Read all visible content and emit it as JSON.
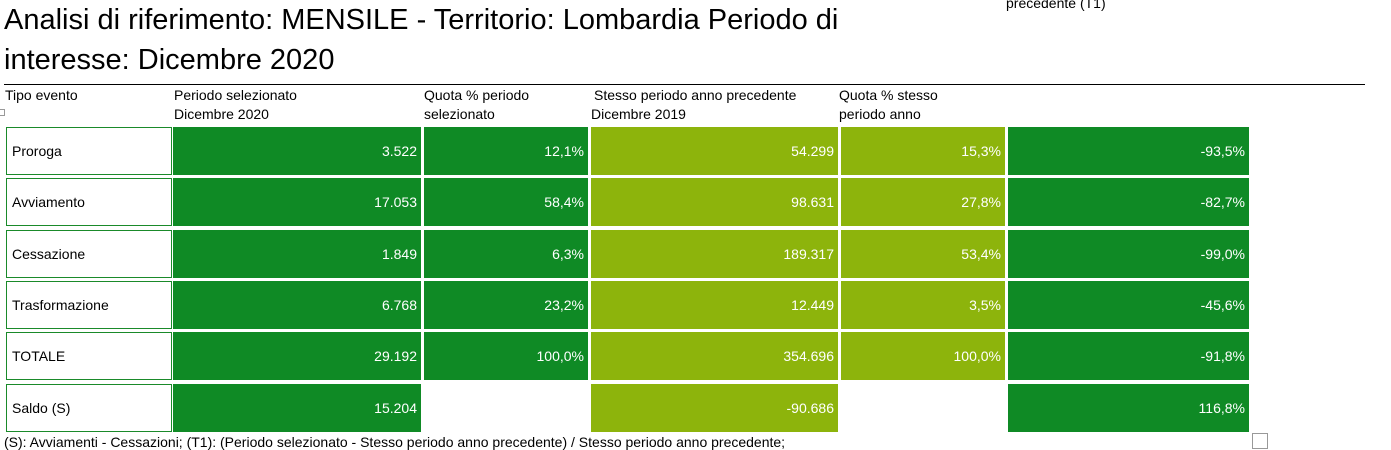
{
  "title": "Analisi di riferimento: MENSILE - Territorio: Lombardia Periodo di interesse: Dicembre 2020",
  "top_note": "precedente (T1)",
  "headers": {
    "col0": "Tipo evento",
    "col1_line1": "Periodo selezionato",
    "col1_line2": "Dicembre 2020",
    "col2_line1": "Quota % periodo",
    "col2_line2": "selezionato",
    "col3_line1": "Stesso periodo anno precedente",
    "col3_line2": "Dicembre 2019",
    "col4_line1": "Quota % stesso",
    "col4_line2": "periodo anno"
  },
  "rows": [
    {
      "label": "Proroga",
      "sel": "3.522",
      "quota_sel": "12,1%",
      "prev": "54.299",
      "quota_prev": "15,3%",
      "var": "-93,5%"
    },
    {
      "label": "Avviamento",
      "sel": "17.053",
      "quota_sel": "58,4%",
      "prev": "98.631",
      "quota_prev": "27,8%",
      "var": "-82,7%"
    },
    {
      "label": "Cessazione",
      "sel": "1.849",
      "quota_sel": "6,3%",
      "prev": "189.317",
      "quota_prev": "53,4%",
      "var": "-99,0%"
    },
    {
      "label": "Trasformazione",
      "sel": "6.768",
      "quota_sel": "23,2%",
      "prev": "12.449",
      "quota_prev": "3,5%",
      "var": "-45,6%"
    },
    {
      "label": "TOTALE",
      "sel": "29.192",
      "quota_sel": "100,0%",
      "prev": "354.696",
      "quota_prev": "100,0%",
      "var": "-91,8%"
    },
    {
      "label": "Saldo (S)",
      "sel": "15.204",
      "prev": "-90.686",
      "var": "116,8%"
    }
  ],
  "footer": "(S): Avviamenti - Cessazioni;        (T1): (Periodo selezionato - Stesso periodo anno precedente) / Stesso periodo anno precedente;",
  "colors": {
    "dark_green": "#0f8a25",
    "light_green": "#8db40c",
    "border_green": "#1a8a2a"
  }
}
